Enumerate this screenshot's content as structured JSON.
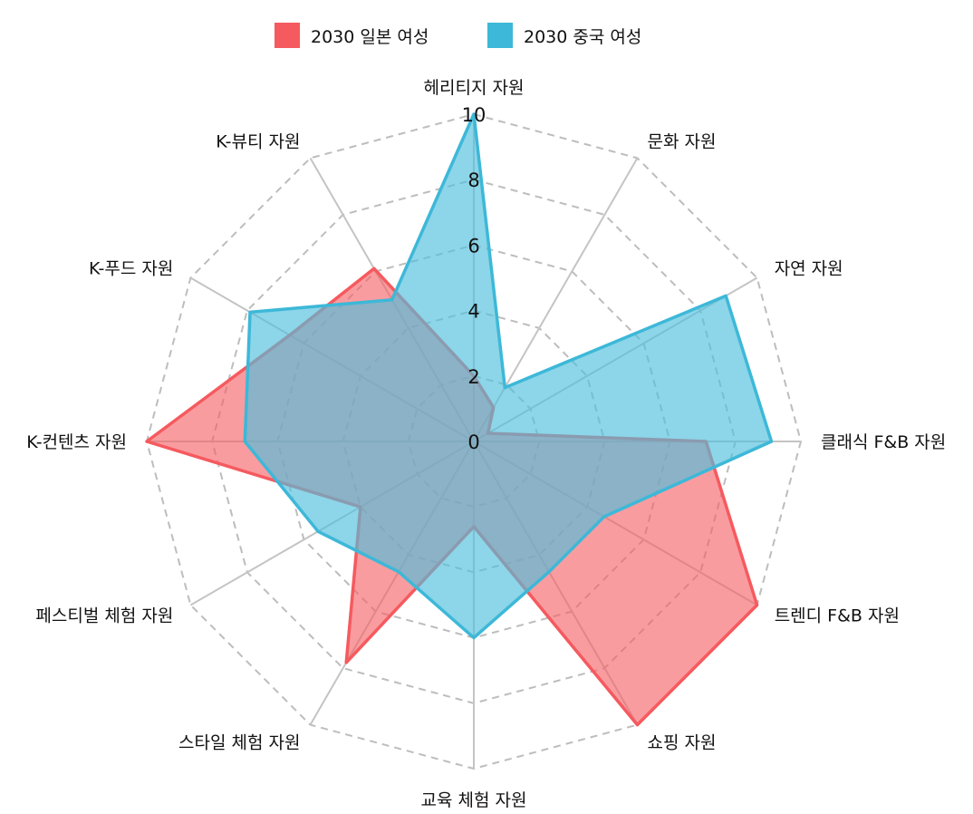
{
  "chart_data": {
    "type": "radar",
    "title": "",
    "axes": [
      "헤리티지 자원",
      "문화 자원",
      "자연 자원",
      "클래식 F&B 자원",
      "트렌디 F&B 자원",
      "쇼핑 자원",
      "교육 체험 자원",
      "스타일 체험 자원",
      "페스티벌 체험 자원",
      "K-컨텐츠 자원",
      "K-푸드 자원",
      "K-뷰티 자원"
    ],
    "r_range": [
      0,
      10
    ],
    "ticks": [
      "0",
      "2",
      "4",
      "6",
      "8",
      "10"
    ],
    "tick_values": [
      0,
      2,
      4,
      6,
      8,
      10
    ],
    "grid": "dashed",
    "legend_position": "top-center",
    "series": [
      {
        "name": "2030 일본 여성",
        "color": "#f55a5f",
        "fill": "rgba(245, 96, 100, 0.62)",
        "values": [
          2.0,
          1.2,
          0.5,
          7.1,
          10.0,
          10.0,
          2.6,
          7.8,
          4.0,
          10.0,
          6.5,
          6.1
        ]
      },
      {
        "name": "2030 중국 여성",
        "color": "#3db8d8",
        "fill": "rgba(80, 190, 220, 0.65)",
        "values": [
          10.0,
          1.9,
          8.9,
          9.1,
          4.6,
          4.6,
          6.0,
          4.6,
          5.5,
          7.0,
          7.9,
          5.0
        ]
      }
    ]
  }
}
